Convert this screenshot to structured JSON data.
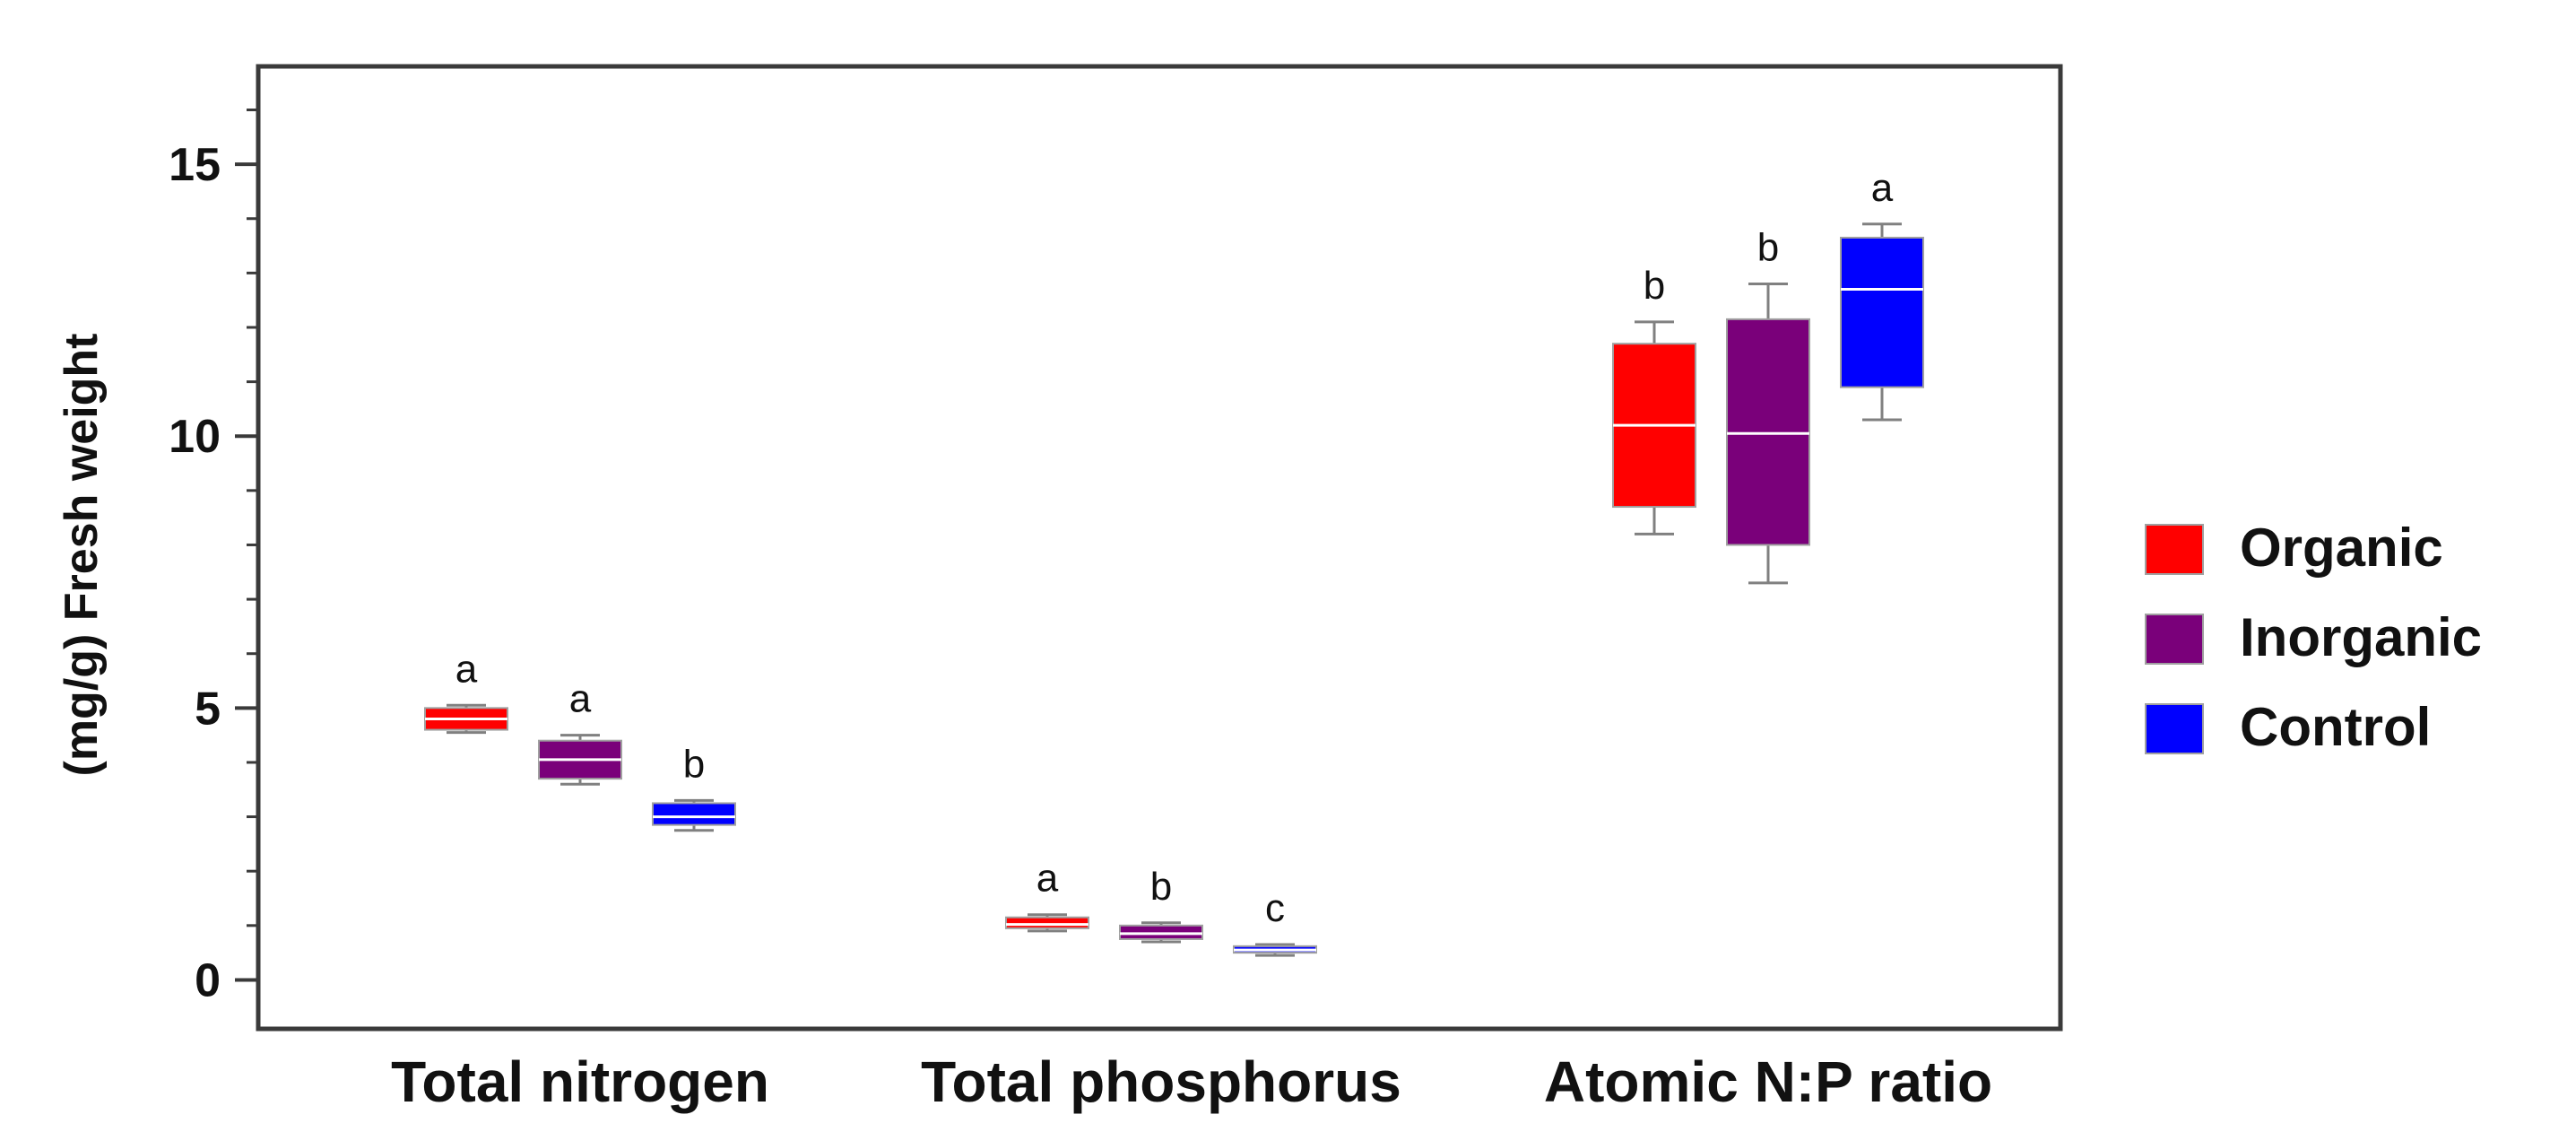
{
  "chart_data": {
    "type": "box",
    "title": "",
    "xlabel": "",
    "ylabel": "(mg/g) Fresh weight",
    "ylim": [
      -0.9,
      16.8
    ],
    "yticks": [
      0,
      5,
      10,
      15
    ],
    "ytick_labels": [
      "0",
      "5",
      "10",
      "15"
    ],
    "minor_ticks": true,
    "grid": false,
    "legend_position": "right",
    "categories": [
      "Total nitrogen",
      "Total phosphorus",
      "Atomic N:P ratio"
    ],
    "series": [
      {
        "name": "Organic",
        "color": "#ff0000",
        "boxes": [
          {
            "min": 4.55,
            "q1": 4.6,
            "median": 4.8,
            "q3": 5.0,
            "max": 5.05,
            "letter": "a"
          },
          {
            "min": 0.9,
            "q1": 0.95,
            "median": 1.02,
            "q3": 1.15,
            "max": 1.2,
            "letter": "a"
          },
          {
            "min": 8.2,
            "q1": 8.7,
            "median": 10.2,
            "q3": 11.7,
            "max": 12.1,
            "letter": "b"
          }
        ]
      },
      {
        "name": "Inorganic",
        "color": "#7a007a",
        "boxes": [
          {
            "min": 3.6,
            "q1": 3.7,
            "median": 4.05,
            "q3": 4.4,
            "max": 4.5,
            "letter": "a"
          },
          {
            "min": 0.7,
            "q1": 0.75,
            "median": 0.85,
            "q3": 1.0,
            "max": 1.05,
            "letter": "b"
          },
          {
            "min": 7.3,
            "q1": 8.0,
            "median": 10.05,
            "q3": 12.15,
            "max": 12.8,
            "letter": "b"
          }
        ]
      },
      {
        "name": "Control",
        "color": "#0000ff",
        "boxes": [
          {
            "min": 2.75,
            "q1": 2.85,
            "median": 3.0,
            "q3": 3.25,
            "max": 3.3,
            "letter": "b"
          },
          {
            "min": 0.45,
            "q1": 0.5,
            "median": 0.55,
            "q3": 0.62,
            "max": 0.65,
            "letter": "c"
          },
          {
            "min": 10.3,
            "q1": 10.9,
            "median": 12.7,
            "q3": 13.65,
            "max": 13.9,
            "letter": "a"
          }
        ]
      }
    ]
  }
}
